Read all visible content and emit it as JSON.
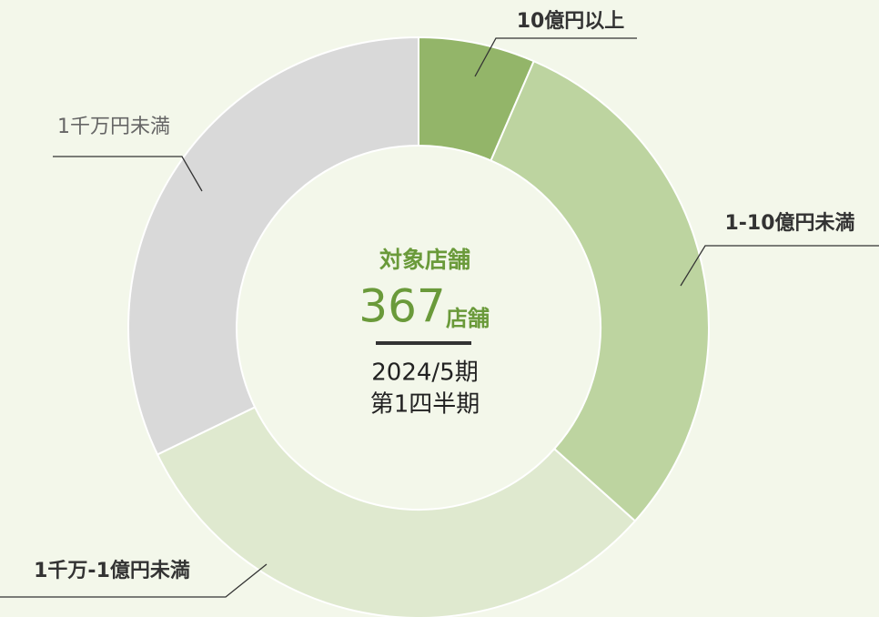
{
  "chart_data": {
    "type": "pie",
    "categories": [
      "10億円以上",
      "1-10億円未満",
      "1千万-1億円未満",
      "1千万円未満"
    ],
    "values": [
      6.5,
      30.1,
      31.2,
      32.2
    ],
    "colors": [
      "#93b569",
      "#bdd4a0",
      "#dfe9cf",
      "#d9d9d9"
    ],
    "center": {
      "title": "対象店舗",
      "value": 367,
      "unit": "店舗",
      "period": "2024/5期",
      "quarter": "第1四半期"
    }
  }
}
